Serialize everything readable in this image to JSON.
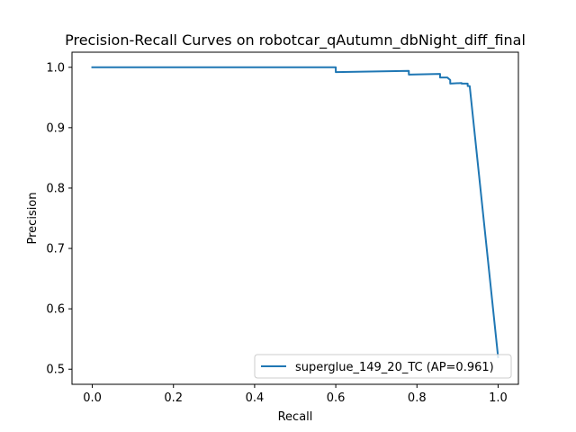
{
  "chart_data": {
    "type": "line",
    "title": "Precision-Recall Curves on robotcar_qAutumn_dbNight_diff_final",
    "xlabel": "Recall",
    "ylabel": "Precision",
    "xlim": [
      -0.05,
      1.05
    ],
    "ylim": [
      0.475,
      1.025
    ],
    "xticks": [
      0.0,
      0.2,
      0.4,
      0.6,
      0.8,
      1.0
    ],
    "xtick_labels": [
      "0.0",
      "0.2",
      "0.4",
      "0.6",
      "0.8",
      "1.0"
    ],
    "yticks": [
      0.5,
      0.6,
      0.7,
      0.8,
      0.9,
      1.0
    ],
    "ytick_labels": [
      "0.5",
      "0.6",
      "0.7",
      "0.8",
      "0.9",
      "1.0"
    ],
    "grid": false,
    "legend_position": "lower right",
    "series": [
      {
        "name": "superglue_149_20_TC (AP=0.961)",
        "color": "#1f77b4",
        "x": [
          0.0,
          0.6,
          0.6,
          0.78,
          0.78,
          0.857,
          0.857,
          0.875,
          0.882,
          0.882,
          0.91,
          0.91,
          0.925,
          0.925,
          0.93,
          1.0
        ],
        "y": [
          1.0,
          1.0,
          0.992,
          0.994,
          0.988,
          0.989,
          0.983,
          0.983,
          0.979,
          0.973,
          0.974,
          0.973,
          0.973,
          0.969,
          0.969,
          0.52
        ]
      }
    ]
  }
}
